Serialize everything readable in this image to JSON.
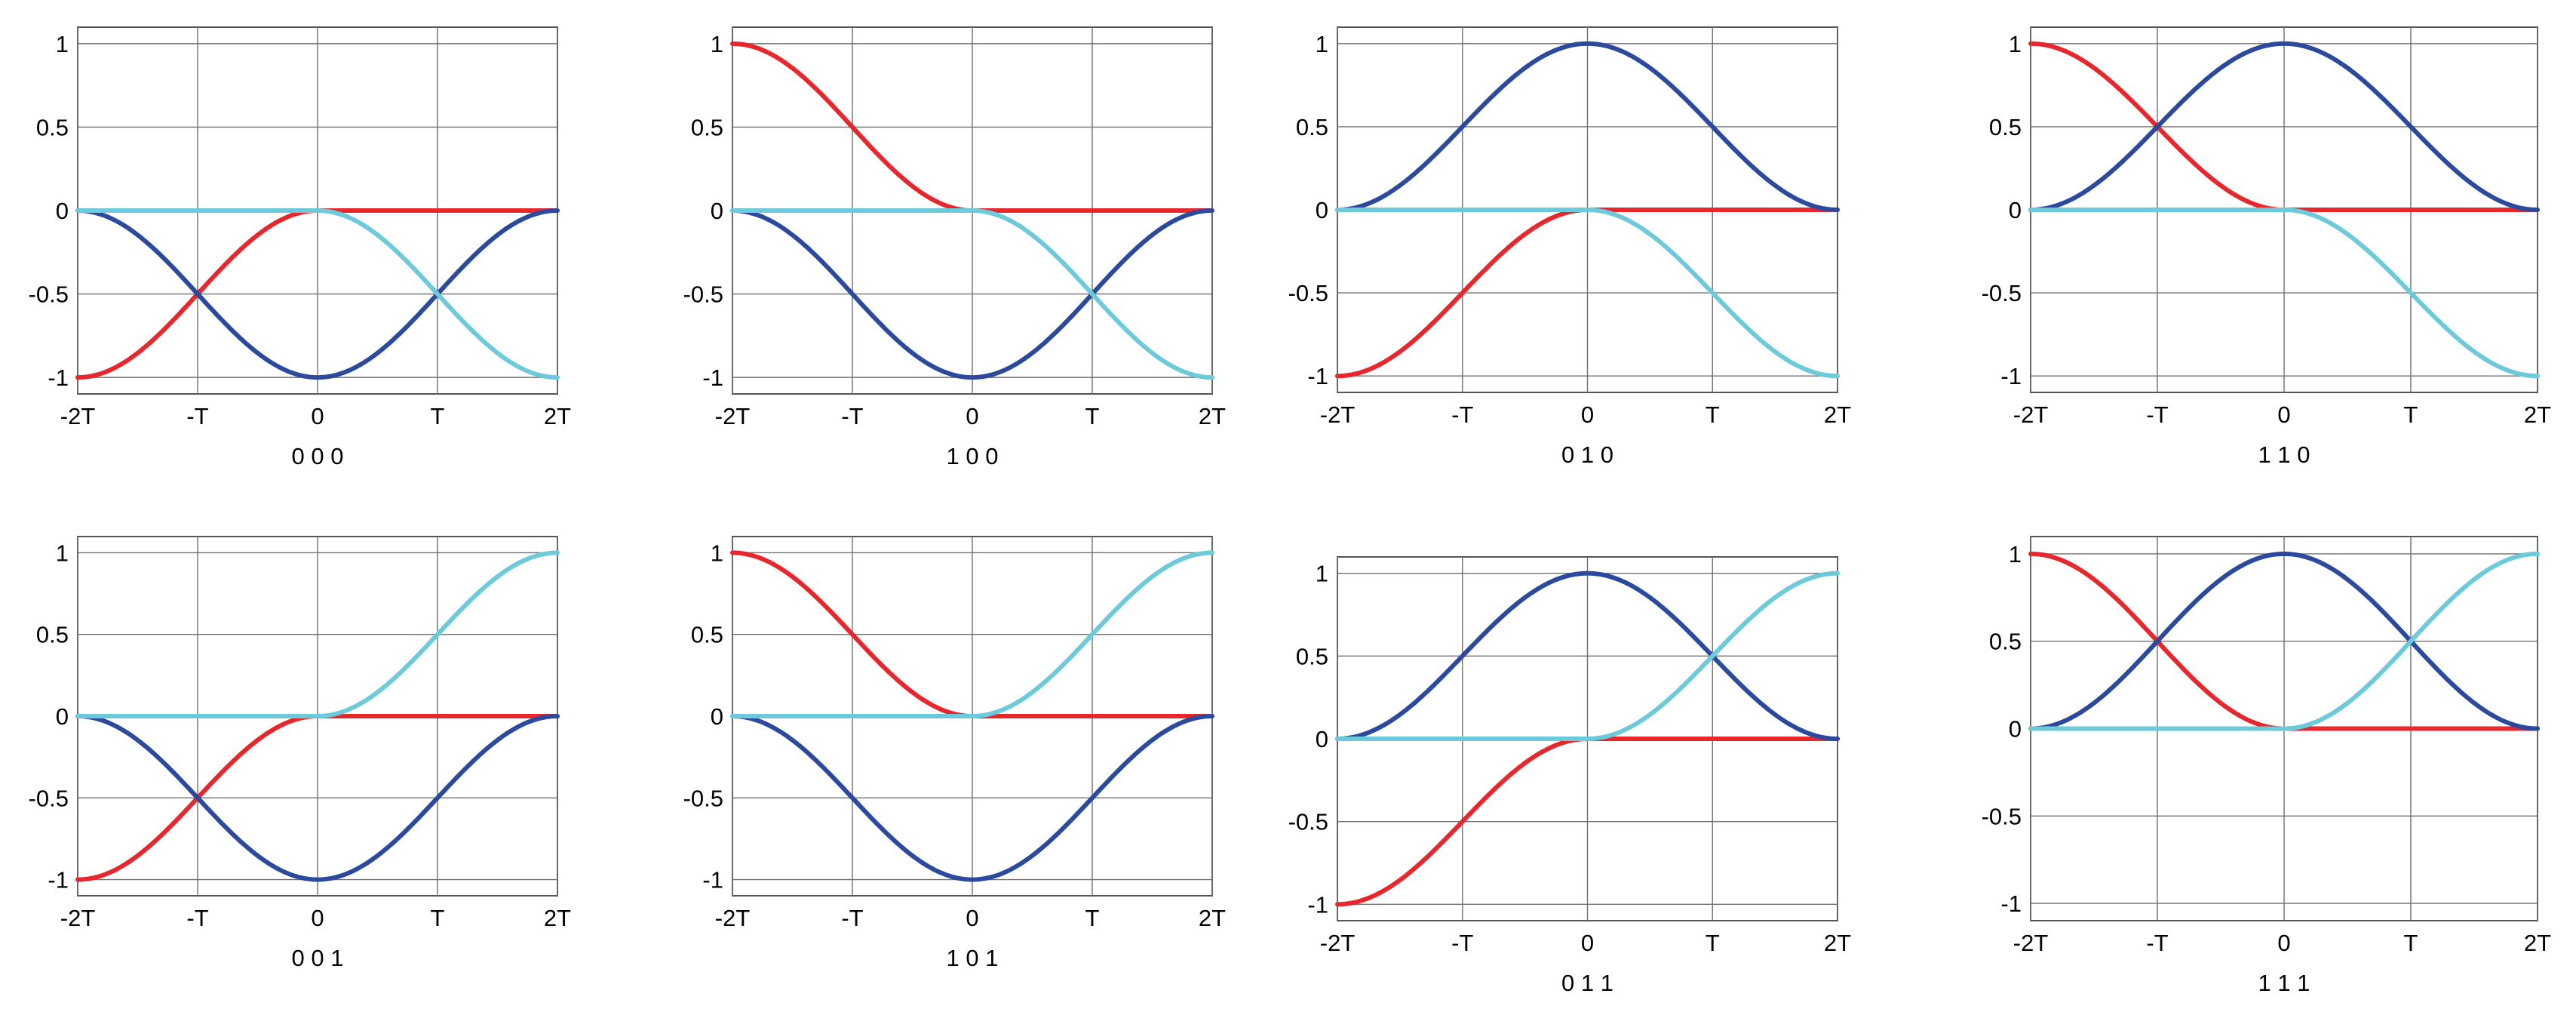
{
  "chart_data": [
    {
      "type": "line",
      "caption": "0 0 0",
      "x_ticks": [
        "-2T",
        "-T",
        "0",
        "T",
        "2T"
      ],
      "y_ticks": [
        "1",
        "0.5",
        "0",
        "-0.5",
        "-1"
      ],
      "xlim": [
        -2,
        2
      ],
      "ylim": [
        -1,
        1
      ],
      "grid": true,
      "series": [
        {
          "color": "#e8272d",
          "shape": "neg_left"
        },
        {
          "color": "#2b4a9e",
          "shape": "neg_center"
        },
        {
          "color": "#6dcadb",
          "shape": "neg_right"
        }
      ]
    },
    {
      "type": "line",
      "caption": "1 0 0",
      "x_ticks": [
        "-2T",
        "-T",
        "0",
        "T",
        "2T"
      ],
      "y_ticks": [
        "1",
        "0.5",
        "0",
        "-0.5",
        "-1"
      ],
      "xlim": [
        -2,
        2
      ],
      "ylim": [
        -1,
        1
      ],
      "grid": true,
      "series": [
        {
          "color": "#e8272d",
          "shape": "pos_left"
        },
        {
          "color": "#2b4a9e",
          "shape": "neg_center"
        },
        {
          "color": "#6dcadb",
          "shape": "neg_right"
        }
      ]
    },
    {
      "type": "line",
      "caption": "0 1 0",
      "x_ticks": [
        "-2T",
        "-T",
        "0",
        "T",
        "2T"
      ],
      "y_ticks": [
        "1",
        "0.5",
        "0",
        "-0.5",
        "-1"
      ],
      "xlim": [
        -2,
        2
      ],
      "ylim": [
        -1,
        1
      ],
      "grid": true,
      "series": [
        {
          "color": "#e8272d",
          "shape": "neg_left"
        },
        {
          "color": "#2b4a9e",
          "shape": "pos_center"
        },
        {
          "color": "#6dcadb",
          "shape": "neg_right"
        }
      ]
    },
    {
      "type": "line",
      "caption": "1 1 0",
      "x_ticks": [
        "-2T",
        "-T",
        "0",
        "T",
        "2T"
      ],
      "y_ticks": [
        "1",
        "0.5",
        "0",
        "-0.5",
        "-1"
      ],
      "xlim": [
        -2,
        2
      ],
      "ylim": [
        -1,
        1
      ],
      "grid": true,
      "series": [
        {
          "color": "#e8272d",
          "shape": "pos_left"
        },
        {
          "color": "#2b4a9e",
          "shape": "pos_center"
        },
        {
          "color": "#6dcadb",
          "shape": "neg_right"
        }
      ]
    },
    {
      "type": "line",
      "caption": "0 0 1",
      "x_ticks": [
        "-2T",
        "-T",
        "0",
        "T",
        "2T"
      ],
      "y_ticks": [
        "1",
        "0.5",
        "0",
        "-0.5",
        "-1"
      ],
      "xlim": [
        -2,
        2
      ],
      "ylim": [
        -1,
        1
      ],
      "grid": true,
      "series": [
        {
          "color": "#e8272d",
          "shape": "neg_left"
        },
        {
          "color": "#2b4a9e",
          "shape": "neg_center"
        },
        {
          "color": "#6dcadb",
          "shape": "pos_right"
        }
      ]
    },
    {
      "type": "line",
      "caption": "1 0 1",
      "x_ticks": [
        "-2T",
        "-T",
        "0",
        "T",
        "2T"
      ],
      "y_ticks": [
        "1",
        "0.5",
        "0",
        "-0.5",
        "-1"
      ],
      "xlim": [
        -2,
        2
      ],
      "ylim": [
        -1,
        1
      ],
      "grid": true,
      "series": [
        {
          "color": "#e8272d",
          "shape": "pos_left"
        },
        {
          "color": "#2b4a9e",
          "shape": "neg_center"
        },
        {
          "color": "#6dcadb",
          "shape": "pos_right"
        }
      ]
    },
    {
      "type": "line",
      "caption": "0 1 1",
      "x_ticks": [
        "-2T",
        "-T",
        "0",
        "T",
        "2T"
      ],
      "y_ticks": [
        "1",
        "0.5",
        "0",
        "-0.5",
        "-1"
      ],
      "xlim": [
        -2,
        2
      ],
      "ylim": [
        -1,
        1
      ],
      "grid": true,
      "series": [
        {
          "color": "#e8272d",
          "shape": "neg_left"
        },
        {
          "color": "#2b4a9e",
          "shape": "pos_center"
        },
        {
          "color": "#6dcadb",
          "shape": "pos_right"
        }
      ]
    },
    {
      "type": "line",
      "caption": "1 1 1",
      "x_ticks": [
        "-2T",
        "-T",
        "0",
        "T",
        "2T"
      ],
      "y_ticks": [
        "1",
        "0.5",
        "0",
        "-0.5",
        "-1"
      ],
      "xlim": [
        -2,
        2
      ],
      "ylim": [
        -1,
        1
      ],
      "grid": true,
      "series": [
        {
          "color": "#e8272d",
          "shape": "pos_left"
        },
        {
          "color": "#2b4a9e",
          "shape": "pos_center"
        },
        {
          "color": "#6dcadb",
          "shape": "pos_right"
        }
      ]
    }
  ]
}
